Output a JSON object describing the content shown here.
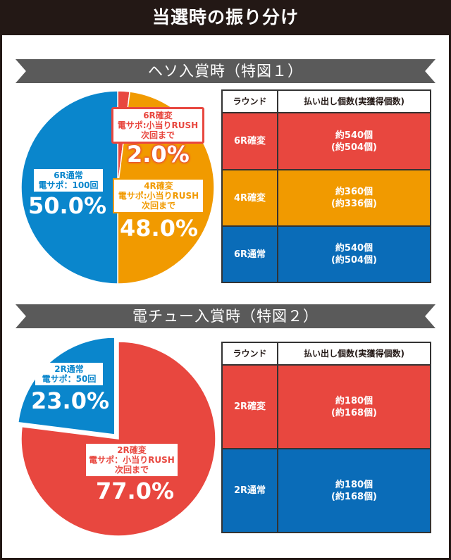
{
  "title": "当選時の振り分け",
  "colors": {
    "red": "#e8473f",
    "orange": "#f19a00",
    "blue": "#0a86cc",
    "table_blue": "#0a6cb8",
    "dark": "#231815"
  },
  "sections": [
    {
      "heading": "ヘソ入賞時（特図１）",
      "table": {
        "headers": [
          "ラウンド",
          "払い出し個数(実獲得個数)"
        ],
        "rows": [
          {
            "round": "6R確変",
            "payout": "約540個",
            "actual": "(約504個)",
            "color": "#e8473f"
          },
          {
            "round": "4R確変",
            "payout": "約360個",
            "actual": "(約336個)",
            "color": "#f19a00"
          },
          {
            "round": "6R通常",
            "payout": "約540個",
            "actual": "(約504個)",
            "color": "#0a6cb8"
          }
        ]
      }
    },
    {
      "heading": "電チュー入賞時（特図２）",
      "table": {
        "headers": [
          "ラウンド",
          "払い出し個数(実獲得個数)"
        ],
        "rows": [
          {
            "round": "2R確変",
            "payout": "約180個",
            "actual": "(約168個)",
            "color": "#e8473f"
          },
          {
            "round": "2R通常",
            "payout": "約180個",
            "actual": "(約168個)",
            "color": "#0a6cb8"
          }
        ]
      }
    }
  ],
  "chart_data": [
    {
      "type": "pie",
      "slices": [
        {
          "label": "6R確変",
          "sub": "電サポ:小当りRUSH",
          "sub2": "次回まで",
          "value": 2.0,
          "pct": "2.0%",
          "color": "#e8473f"
        },
        {
          "label": "4R確変",
          "sub": "電サポ:小当りRUSH",
          "sub2": "次回まで",
          "value": 48.0,
          "pct": "48.0%",
          "color": "#f19a00"
        },
        {
          "label": "6R通常",
          "sub": "電サポ：100回",
          "value": 50.0,
          "pct": "50.0%",
          "color": "#0a86cc"
        }
      ]
    },
    {
      "type": "pie",
      "slices": [
        {
          "label": "2R確変",
          "sub": "電サポ：小当りRUSH",
          "sub2": "次回まで",
          "value": 77.0,
          "pct": "77.0%",
          "color": "#e8473f"
        },
        {
          "label": "2R通常",
          "sub": "電サポ：50回",
          "value": 23.0,
          "pct": "23.0%",
          "color": "#0a86cc"
        }
      ]
    }
  ]
}
